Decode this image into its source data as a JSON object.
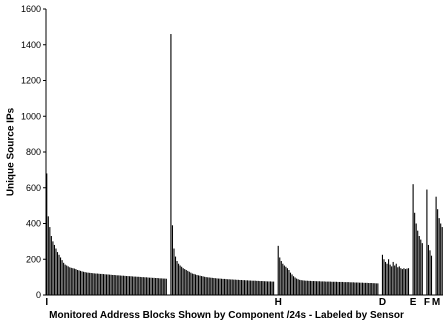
{
  "chart_data": {
    "type": "bar",
    "title": "",
    "xlabel": "Monitored Address Blocks Shown by Component /24s - Labeled by Sensor",
    "ylabel": "Unique Source IPs",
    "ylim": [
      0,
      1600
    ],
    "yticks": [
      0,
      200,
      400,
      600,
      800,
      1000,
      1200,
      1400,
      1600
    ],
    "grid": false,
    "legend": "none",
    "bar_color": "#000000",
    "groups": [
      {
        "label": "I",
        "values": [
          680,
          440,
          380,
          330,
          300,
          280,
          260,
          240,
          225,
          210,
          195,
          180,
          170,
          165,
          160,
          155,
          152,
          150,
          148,
          145,
          140,
          138,
          135,
          132,
          130,
          128,
          126,
          125,
          124,
          123,
          122,
          121,
          120,
          120,
          119,
          118,
          118,
          117,
          116,
          115,
          115,
          114,
          113,
          112,
          112,
          111,
          110,
          110,
          109,
          108,
          108,
          107,
          106,
          106,
          105,
          105,
          104,
          103,
          103,
          102,
          102,
          101,
          100,
          100,
          99,
          99,
          98,
          97,
          97,
          96,
          96,
          95,
          95,
          94,
          93,
          93,
          92,
          92,
          91
        ]
      },
      {
        "label": "",
        "values": [
          1460,
          390,
          260,
          215,
          190,
          175,
          165,
          158,
          150,
          145,
          140,
          135,
          130,
          125,
          120,
          118,
          115,
          112,
          110,
          108,
          106,
          104,
          102,
          100,
          99,
          98,
          97,
          96,
          95,
          94,
          93,
          92,
          92,
          91,
          90,
          90,
          89,
          88,
          88,
          87,
          87,
          86,
          86,
          85,
          85,
          84,
          84,
          83,
          83,
          82,
          82,
          81,
          81,
          80,
          80,
          80,
          79,
          79,
          78,
          78,
          78,
          77,
          77,
          76,
          76,
          76,
          75,
          75
        ]
      },
      {
        "label": "H",
        "values": [
          275,
          210,
          190,
          175,
          165,
          158,
          150,
          140,
          125,
          115,
          105,
          98,
          92,
          88,
          85,
          83,
          82,
          81,
          80,
          80,
          79,
          79,
          78,
          78,
          78,
          77,
          77,
          77,
          76,
          76,
          76,
          75,
          75,
          75,
          75,
          74,
          74,
          74,
          74,
          73,
          73,
          73,
          73,
          72,
          72,
          72,
          72,
          71,
          71,
          71,
          70,
          70,
          70,
          69,
          69,
          69,
          68,
          68,
          68,
          67,
          67,
          67,
          66,
          66,
          65,
          65
        ]
      },
      {
        "label": "D",
        "values": [
          225,
          200,
          185,
          175,
          200,
          170,
          160,
          185,
          165,
          175,
          155,
          160,
          150,
          145,
          150,
          145,
          148,
          150
        ]
      },
      {
        "label": "E",
        "values": [
          620,
          460,
          400,
          360,
          330,
          310,
          290
        ]
      },
      {
        "label": "F",
        "values": [
          590,
          280,
          250,
          220
        ]
      },
      {
        "label": "M",
        "values": [
          550,
          480,
          430,
          400,
          380
        ]
      }
    ]
  }
}
